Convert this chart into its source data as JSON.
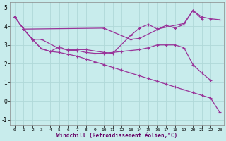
{
  "xlabel": "Windchill (Refroidissement éolien,°C)",
  "bg_color": "#c8ecec",
  "grid_color": "#b0d8d8",
  "line_color": "#993399",
  "xlim": [
    -0.5,
    23.5
  ],
  "ylim": [
    -1.3,
    5.3
  ],
  "xticks": [
    0,
    1,
    2,
    3,
    4,
    5,
    6,
    7,
    8,
    9,
    10,
    11,
    12,
    13,
    14,
    15,
    16,
    17,
    18,
    19,
    20,
    21,
    22,
    23
  ],
  "yticks": [
    -1,
    0,
    1,
    2,
    3,
    4,
    5
  ],
  "line1_x": [
    0,
    1,
    2,
    3,
    4,
    5,
    6,
    7,
    8,
    9,
    10,
    11,
    12,
    13,
    14,
    15,
    16,
    17,
    18,
    19,
    20,
    21,
    22,
    23
  ],
  "line1_y": [
    4.5,
    3.85,
    null,
    null,
    null,
    null,
    null,
    null,
    null,
    null,
    3.9,
    null,
    null,
    3.3,
    3.35,
    null,
    null,
    4.05,
    3.9,
    4.1,
    4.85,
    4.4,
    null,
    null
  ],
  "line1_all_x": [
    0,
    1,
    10,
    13,
    14,
    17,
    18,
    19,
    20,
    21
  ],
  "line1_all_y": [
    4.5,
    3.85,
    3.9,
    3.3,
    3.35,
    4.05,
    3.9,
    4.1,
    4.85,
    4.4
  ],
  "line2_x": [
    0,
    1,
    2,
    3,
    4,
    5,
    6,
    7,
    8,
    9,
    10,
    11,
    12,
    13,
    14,
    15,
    16,
    17,
    18,
    19,
    20,
    21,
    22,
    23
  ],
  "line2_all_x": [
    0,
    1,
    2,
    3,
    5,
    6,
    7,
    8,
    10,
    11,
    13,
    14,
    15,
    16,
    19,
    20,
    21,
    22,
    23
  ],
  "line2_all_y": [
    4.5,
    3.85,
    3.3,
    3.3,
    2.8,
    2.75,
    2.75,
    2.75,
    2.6,
    2.55,
    3.5,
    3.9,
    4.1,
    3.85,
    4.15,
    4.85,
    4.5,
    4.4,
    4.35
  ],
  "line3_all_x": [
    0,
    1,
    2,
    3,
    4,
    5,
    6,
    7,
    8,
    9,
    10,
    11,
    12,
    13,
    14,
    15,
    16,
    17,
    18,
    19,
    20,
    21,
    22
  ],
  "line3_all_y": [
    4.5,
    3.85,
    3.3,
    2.8,
    2.65,
    2.9,
    2.7,
    2.7,
    2.6,
    2.55,
    2.55,
    2.6,
    2.65,
    2.7,
    2.75,
    2.85,
    3.0,
    3.0,
    3.0,
    2.85,
    1.95,
    1.5,
    1.1
  ],
  "line4_all_x": [
    0,
    1,
    2,
    3,
    4,
    5,
    6,
    7,
    8,
    9,
    10,
    11,
    12,
    13,
    14,
    15,
    16,
    17,
    18,
    19,
    20,
    21,
    22,
    23
  ],
  "line4_all_y": [
    4.5,
    3.85,
    3.3,
    2.8,
    2.65,
    2.6,
    2.5,
    2.4,
    2.25,
    2.1,
    1.95,
    1.8,
    1.65,
    1.5,
    1.35,
    1.2,
    1.05,
    0.9,
    0.75,
    0.6,
    0.45,
    0.3,
    0.15,
    -0.6
  ],
  "marker_size": 2.5,
  "line_width": 0.9
}
